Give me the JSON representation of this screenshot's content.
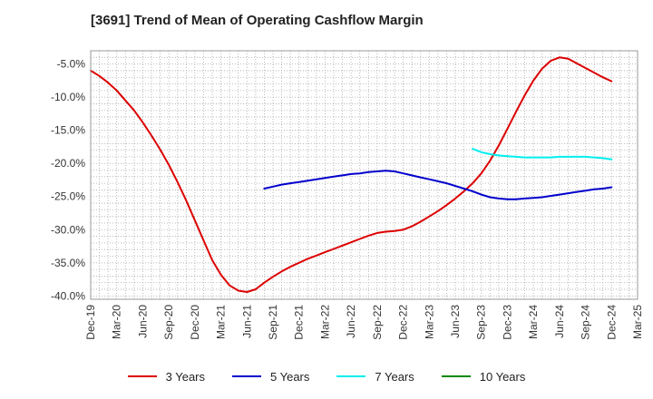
{
  "chart_data": {
    "type": "line",
    "title": "[3691]  Trend of Mean of Operating Cashflow Margin",
    "x_ticks": [
      "Dec-19",
      "Mar-20",
      "Jun-20",
      "Sep-20",
      "Dec-20",
      "Mar-21",
      "Jun-21",
      "Sep-21",
      "Dec-21",
      "Mar-22",
      "Jun-22",
      "Sep-22",
      "Dec-22",
      "Mar-23",
      "Jun-23",
      "Sep-23",
      "Dec-23",
      "Mar-24",
      "Jun-24",
      "Sep-24",
      "Dec-24",
      "Mar-25"
    ],
    "y_ticks": [
      -5.0,
      -10.0,
      -15.0,
      -20.0,
      -25.0,
      -30.0,
      -35.0,
      -40.0
    ],
    "y_tick_labels": [
      "-5.0%",
      "-10.0%",
      "-15.0%",
      "-20.0%",
      "-25.0%",
      "-30.0%",
      "-35.0%",
      "-40.0%"
    ],
    "ylim": [
      -40.5,
      -3.0
    ],
    "grid": true,
    "legend_position": "bottom",
    "series": [
      {
        "name": "3 Years",
        "color": "#dd0000",
        "points": [
          [
            "Dec-19",
            -6.0
          ],
          [
            "Jan-20",
            -6.8
          ],
          [
            "Feb-20",
            -7.8
          ],
          [
            "Mar-20",
            -9.0
          ],
          [
            "Apr-20",
            -10.5
          ],
          [
            "May-20",
            -12.0
          ],
          [
            "Jun-20",
            -13.8
          ],
          [
            "Jul-20",
            -15.8
          ],
          [
            "Aug-20",
            -17.9
          ],
          [
            "Sep-20",
            -20.2
          ],
          [
            "Oct-20",
            -22.8
          ],
          [
            "Nov-20",
            -25.6
          ],
          [
            "Dec-20",
            -28.6
          ],
          [
            "Jan-21",
            -31.6
          ],
          [
            "Feb-21",
            -34.6
          ],
          [
            "Mar-21",
            -36.8
          ],
          [
            "Apr-21",
            -38.4
          ],
          [
            "May-21",
            -39.2
          ],
          [
            "Jun-21",
            -39.4
          ],
          [
            "Jul-21",
            -39.0
          ],
          [
            "Aug-21",
            -38.0
          ],
          [
            "Sep-21",
            -37.1
          ],
          [
            "Oct-21",
            -36.3
          ],
          [
            "Nov-21",
            -35.6
          ],
          [
            "Dec-21",
            -35.0
          ],
          [
            "Jan-22",
            -34.4
          ],
          [
            "Feb-22",
            -33.9
          ],
          [
            "Mar-22",
            -33.4
          ],
          [
            "Apr-22",
            -32.9
          ],
          [
            "May-22",
            -32.4
          ],
          [
            "Jun-22",
            -31.9
          ],
          [
            "Jul-22",
            -31.4
          ],
          [
            "Aug-22",
            -30.9
          ],
          [
            "Sep-22",
            -30.5
          ],
          [
            "Oct-22",
            -30.3
          ],
          [
            "Nov-22",
            -30.2
          ],
          [
            "Dec-22",
            -30.0
          ],
          [
            "Jan-23",
            -29.5
          ],
          [
            "Feb-23",
            -28.8
          ],
          [
            "Mar-23",
            -28.0
          ],
          [
            "Apr-23",
            -27.2
          ],
          [
            "May-23",
            -26.3
          ],
          [
            "Jun-23",
            -25.3
          ],
          [
            "Jul-23",
            -24.2
          ],
          [
            "Aug-23",
            -23.0
          ],
          [
            "Sep-23",
            -21.5
          ],
          [
            "Oct-23",
            -19.6
          ],
          [
            "Nov-23",
            -17.3
          ],
          [
            "Dec-23",
            -14.8
          ],
          [
            "Jan-24",
            -12.2
          ],
          [
            "Feb-24",
            -9.7
          ],
          [
            "Mar-24",
            -7.5
          ],
          [
            "Apr-24",
            -5.7
          ],
          [
            "May-24",
            -4.5
          ],
          [
            "Jun-24",
            -4.0
          ],
          [
            "Jul-24",
            -4.2
          ],
          [
            "Aug-24",
            -4.9
          ],
          [
            "Sep-24",
            -5.6
          ],
          [
            "Oct-24",
            -6.3
          ],
          [
            "Nov-24",
            -7.0
          ],
          [
            "Dec-24",
            -7.6
          ]
        ]
      },
      {
        "name": "5 Years",
        "color": "#0000cc",
        "points": [
          [
            "Aug-21",
            -23.8
          ],
          [
            "Sep-21",
            -23.5
          ],
          [
            "Oct-21",
            -23.2
          ],
          [
            "Nov-21",
            -23.0
          ],
          [
            "Dec-21",
            -22.8
          ],
          [
            "Jan-22",
            -22.6
          ],
          [
            "Feb-22",
            -22.4
          ],
          [
            "Mar-22",
            -22.2
          ],
          [
            "Apr-22",
            -22.0
          ],
          [
            "May-22",
            -21.8
          ],
          [
            "Jun-22",
            -21.6
          ],
          [
            "Jul-22",
            -21.5
          ],
          [
            "Aug-22",
            -21.3
          ],
          [
            "Sep-22",
            -21.2
          ],
          [
            "Oct-22",
            -21.1
          ],
          [
            "Nov-22",
            -21.2
          ],
          [
            "Dec-22",
            -21.5
          ],
          [
            "Jan-23",
            -21.8
          ],
          [
            "Feb-23",
            -22.1
          ],
          [
            "Mar-23",
            -22.4
          ],
          [
            "Apr-23",
            -22.7
          ],
          [
            "May-23",
            -23.0
          ],
          [
            "Jun-23",
            -23.4
          ],
          [
            "Jul-23",
            -23.8
          ],
          [
            "Aug-23",
            -24.2
          ],
          [
            "Sep-23",
            -24.7
          ],
          [
            "Oct-23",
            -25.1
          ],
          [
            "Nov-23",
            -25.3
          ],
          [
            "Dec-23",
            -25.4
          ],
          [
            "Jan-24",
            -25.4
          ],
          [
            "Feb-24",
            -25.3
          ],
          [
            "Mar-24",
            -25.2
          ],
          [
            "Apr-24",
            -25.1
          ],
          [
            "May-24",
            -24.9
          ],
          [
            "Jun-24",
            -24.7
          ],
          [
            "Jul-24",
            -24.5
          ],
          [
            "Aug-24",
            -24.3
          ],
          [
            "Sep-24",
            -24.1
          ],
          [
            "Oct-24",
            -23.9
          ],
          [
            "Nov-24",
            -23.8
          ],
          [
            "Dec-24",
            -23.6
          ]
        ]
      },
      {
        "name": "7 Years",
        "color": "#00eeee",
        "points": [
          [
            "Aug-23",
            -17.8
          ],
          [
            "Sep-23",
            -18.3
          ],
          [
            "Oct-23",
            -18.6
          ],
          [
            "Nov-23",
            -18.8
          ],
          [
            "Dec-23",
            -18.9
          ],
          [
            "Jan-24",
            -19.0
          ],
          [
            "Feb-24",
            -19.1
          ],
          [
            "Mar-24",
            -19.1
          ],
          [
            "Apr-24",
            -19.1
          ],
          [
            "May-24",
            -19.1
          ],
          [
            "Jun-24",
            -19.0
          ],
          [
            "Jul-24",
            -19.0
          ],
          [
            "Aug-24",
            -19.0
          ],
          [
            "Sep-24",
            -19.0
          ],
          [
            "Oct-24",
            -19.1
          ],
          [
            "Nov-24",
            -19.2
          ],
          [
            "Dec-24",
            -19.4
          ]
        ]
      },
      {
        "name": "10 Years",
        "color": "#008800",
        "points": []
      }
    ]
  }
}
